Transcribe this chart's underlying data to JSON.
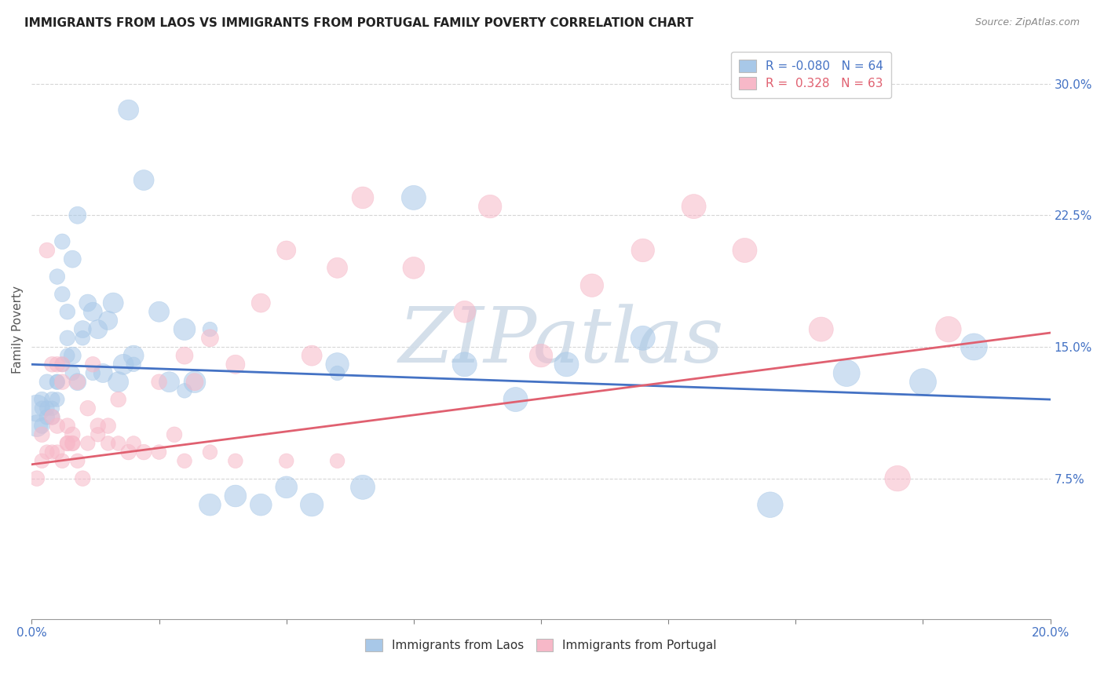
{
  "title": "IMMIGRANTS FROM LAOS VS IMMIGRANTS FROM PORTUGAL FAMILY POVERTY CORRELATION CHART",
  "source": "Source: ZipAtlas.com",
  "ylabel": "Family Poverty",
  "ytick_labels": [
    "7.5%",
    "15.0%",
    "22.5%",
    "30.0%"
  ],
  "ytick_values": [
    0.075,
    0.15,
    0.225,
    0.3
  ],
  "xmin": 0.0,
  "xmax": 0.2,
  "ymin": -0.005,
  "ymax": 0.325,
  "laos_R": -0.08,
  "laos_N": 64,
  "portugal_R": 0.328,
  "portugal_N": 63,
  "laos_color": "#a8c8e8",
  "portugal_color": "#f7b8c8",
  "laos_line_color": "#4472c4",
  "portugal_line_color": "#e06070",
  "laos_scatter_x": [
    0.001,
    0.001,
    0.002,
    0.002,
    0.003,
    0.003,
    0.004,
    0.004,
    0.005,
    0.005,
    0.006,
    0.006,
    0.007,
    0.007,
    0.008,
    0.008,
    0.009,
    0.009,
    0.01,
    0.011,
    0.012,
    0.013,
    0.014,
    0.015,
    0.016,
    0.017,
    0.018,
    0.019,
    0.02,
    0.022,
    0.025,
    0.027,
    0.03,
    0.032,
    0.035,
    0.04,
    0.045,
    0.05,
    0.055,
    0.06,
    0.065,
    0.075,
    0.085,
    0.095,
    0.105,
    0.12,
    0.145,
    0.16,
    0.175,
    0.185,
    0.002,
    0.003,
    0.004,
    0.005,
    0.005,
    0.006,
    0.007,
    0.008,
    0.01,
    0.012,
    0.02,
    0.035,
    0.06,
    0.03
  ],
  "laos_scatter_y": [
    0.115,
    0.105,
    0.12,
    0.105,
    0.13,
    0.11,
    0.12,
    0.11,
    0.19,
    0.13,
    0.21,
    0.18,
    0.17,
    0.155,
    0.2,
    0.145,
    0.225,
    0.13,
    0.16,
    0.175,
    0.17,
    0.16,
    0.135,
    0.165,
    0.175,
    0.13,
    0.14,
    0.285,
    0.145,
    0.245,
    0.17,
    0.13,
    0.16,
    0.13,
    0.06,
    0.065,
    0.06,
    0.07,
    0.06,
    0.14,
    0.07,
    0.235,
    0.14,
    0.12,
    0.14,
    0.155,
    0.06,
    0.135,
    0.13,
    0.15,
    0.115,
    0.115,
    0.115,
    0.13,
    0.12,
    0.14,
    0.145,
    0.135,
    0.155,
    0.135,
    0.14,
    0.16,
    0.135,
    0.125
  ],
  "laos_scatter_size": [
    600,
    400,
    200,
    200,
    200,
    200,
    200,
    200,
    200,
    200,
    200,
    200,
    200,
    200,
    250,
    250,
    250,
    250,
    250,
    250,
    300,
    300,
    300,
    300,
    350,
    350,
    350,
    350,
    350,
    350,
    350,
    350,
    400,
    400,
    400,
    400,
    400,
    400,
    450,
    450,
    500,
    500,
    500,
    500,
    500,
    500,
    550,
    600,
    600,
    600,
    180,
    180,
    180,
    180,
    180,
    180,
    180,
    180,
    180,
    180,
    180,
    180,
    180,
    180
  ],
  "portugal_scatter_x": [
    0.001,
    0.002,
    0.003,
    0.004,
    0.004,
    0.005,
    0.005,
    0.006,
    0.006,
    0.007,
    0.007,
    0.008,
    0.008,
    0.009,
    0.01,
    0.011,
    0.012,
    0.013,
    0.015,
    0.017,
    0.019,
    0.022,
    0.025,
    0.028,
    0.03,
    0.032,
    0.035,
    0.04,
    0.045,
    0.05,
    0.055,
    0.06,
    0.065,
    0.075,
    0.085,
    0.09,
    0.1,
    0.11,
    0.12,
    0.13,
    0.14,
    0.155,
    0.17,
    0.18,
    0.002,
    0.003,
    0.004,
    0.005,
    0.006,
    0.007,
    0.008,
    0.009,
    0.011,
    0.013,
    0.015,
    0.017,
    0.02,
    0.025,
    0.03,
    0.035,
    0.04,
    0.05,
    0.06
  ],
  "portugal_scatter_y": [
    0.075,
    0.1,
    0.205,
    0.14,
    0.11,
    0.14,
    0.105,
    0.14,
    0.13,
    0.105,
    0.095,
    0.095,
    0.1,
    0.13,
    0.075,
    0.115,
    0.14,
    0.105,
    0.105,
    0.12,
    0.09,
    0.09,
    0.13,
    0.1,
    0.145,
    0.13,
    0.155,
    0.14,
    0.175,
    0.205,
    0.145,
    0.195,
    0.235,
    0.195,
    0.17,
    0.23,
    0.145,
    0.185,
    0.205,
    0.23,
    0.205,
    0.16,
    0.075,
    0.16,
    0.085,
    0.09,
    0.09,
    0.09,
    0.085,
    0.095,
    0.095,
    0.085,
    0.095,
    0.1,
    0.095,
    0.095,
    0.095,
    0.09,
    0.085,
    0.09,
    0.085,
    0.085,
    0.085
  ],
  "portugal_scatter_size": [
    200,
    200,
    200,
    200,
    200,
    200,
    200,
    200,
    200,
    200,
    200,
    200,
    200,
    200,
    200,
    200,
    200,
    200,
    200,
    200,
    200,
    200,
    200,
    200,
    250,
    250,
    250,
    300,
    300,
    300,
    350,
    350,
    400,
    400,
    400,
    450,
    450,
    450,
    450,
    500,
    500,
    500,
    550,
    550,
    180,
    180,
    180,
    180,
    180,
    180,
    180,
    180,
    180,
    180,
    180,
    180,
    180,
    180,
    180,
    180,
    180,
    180,
    180
  ],
  "laos_trendline_y_start": 0.14,
  "laos_trendline_y_end": 0.12,
  "portugal_trendline_y_start": 0.083,
  "portugal_trendline_y_end": 0.158,
  "watermark_text": "ZIPatlas",
  "watermark_color": "#d0dce8",
  "bg_color": "#ffffff",
  "grid_color": "#cccccc",
  "axis_label_color": "#4472c4",
  "title_color": "#222222",
  "source_color": "#888888"
}
